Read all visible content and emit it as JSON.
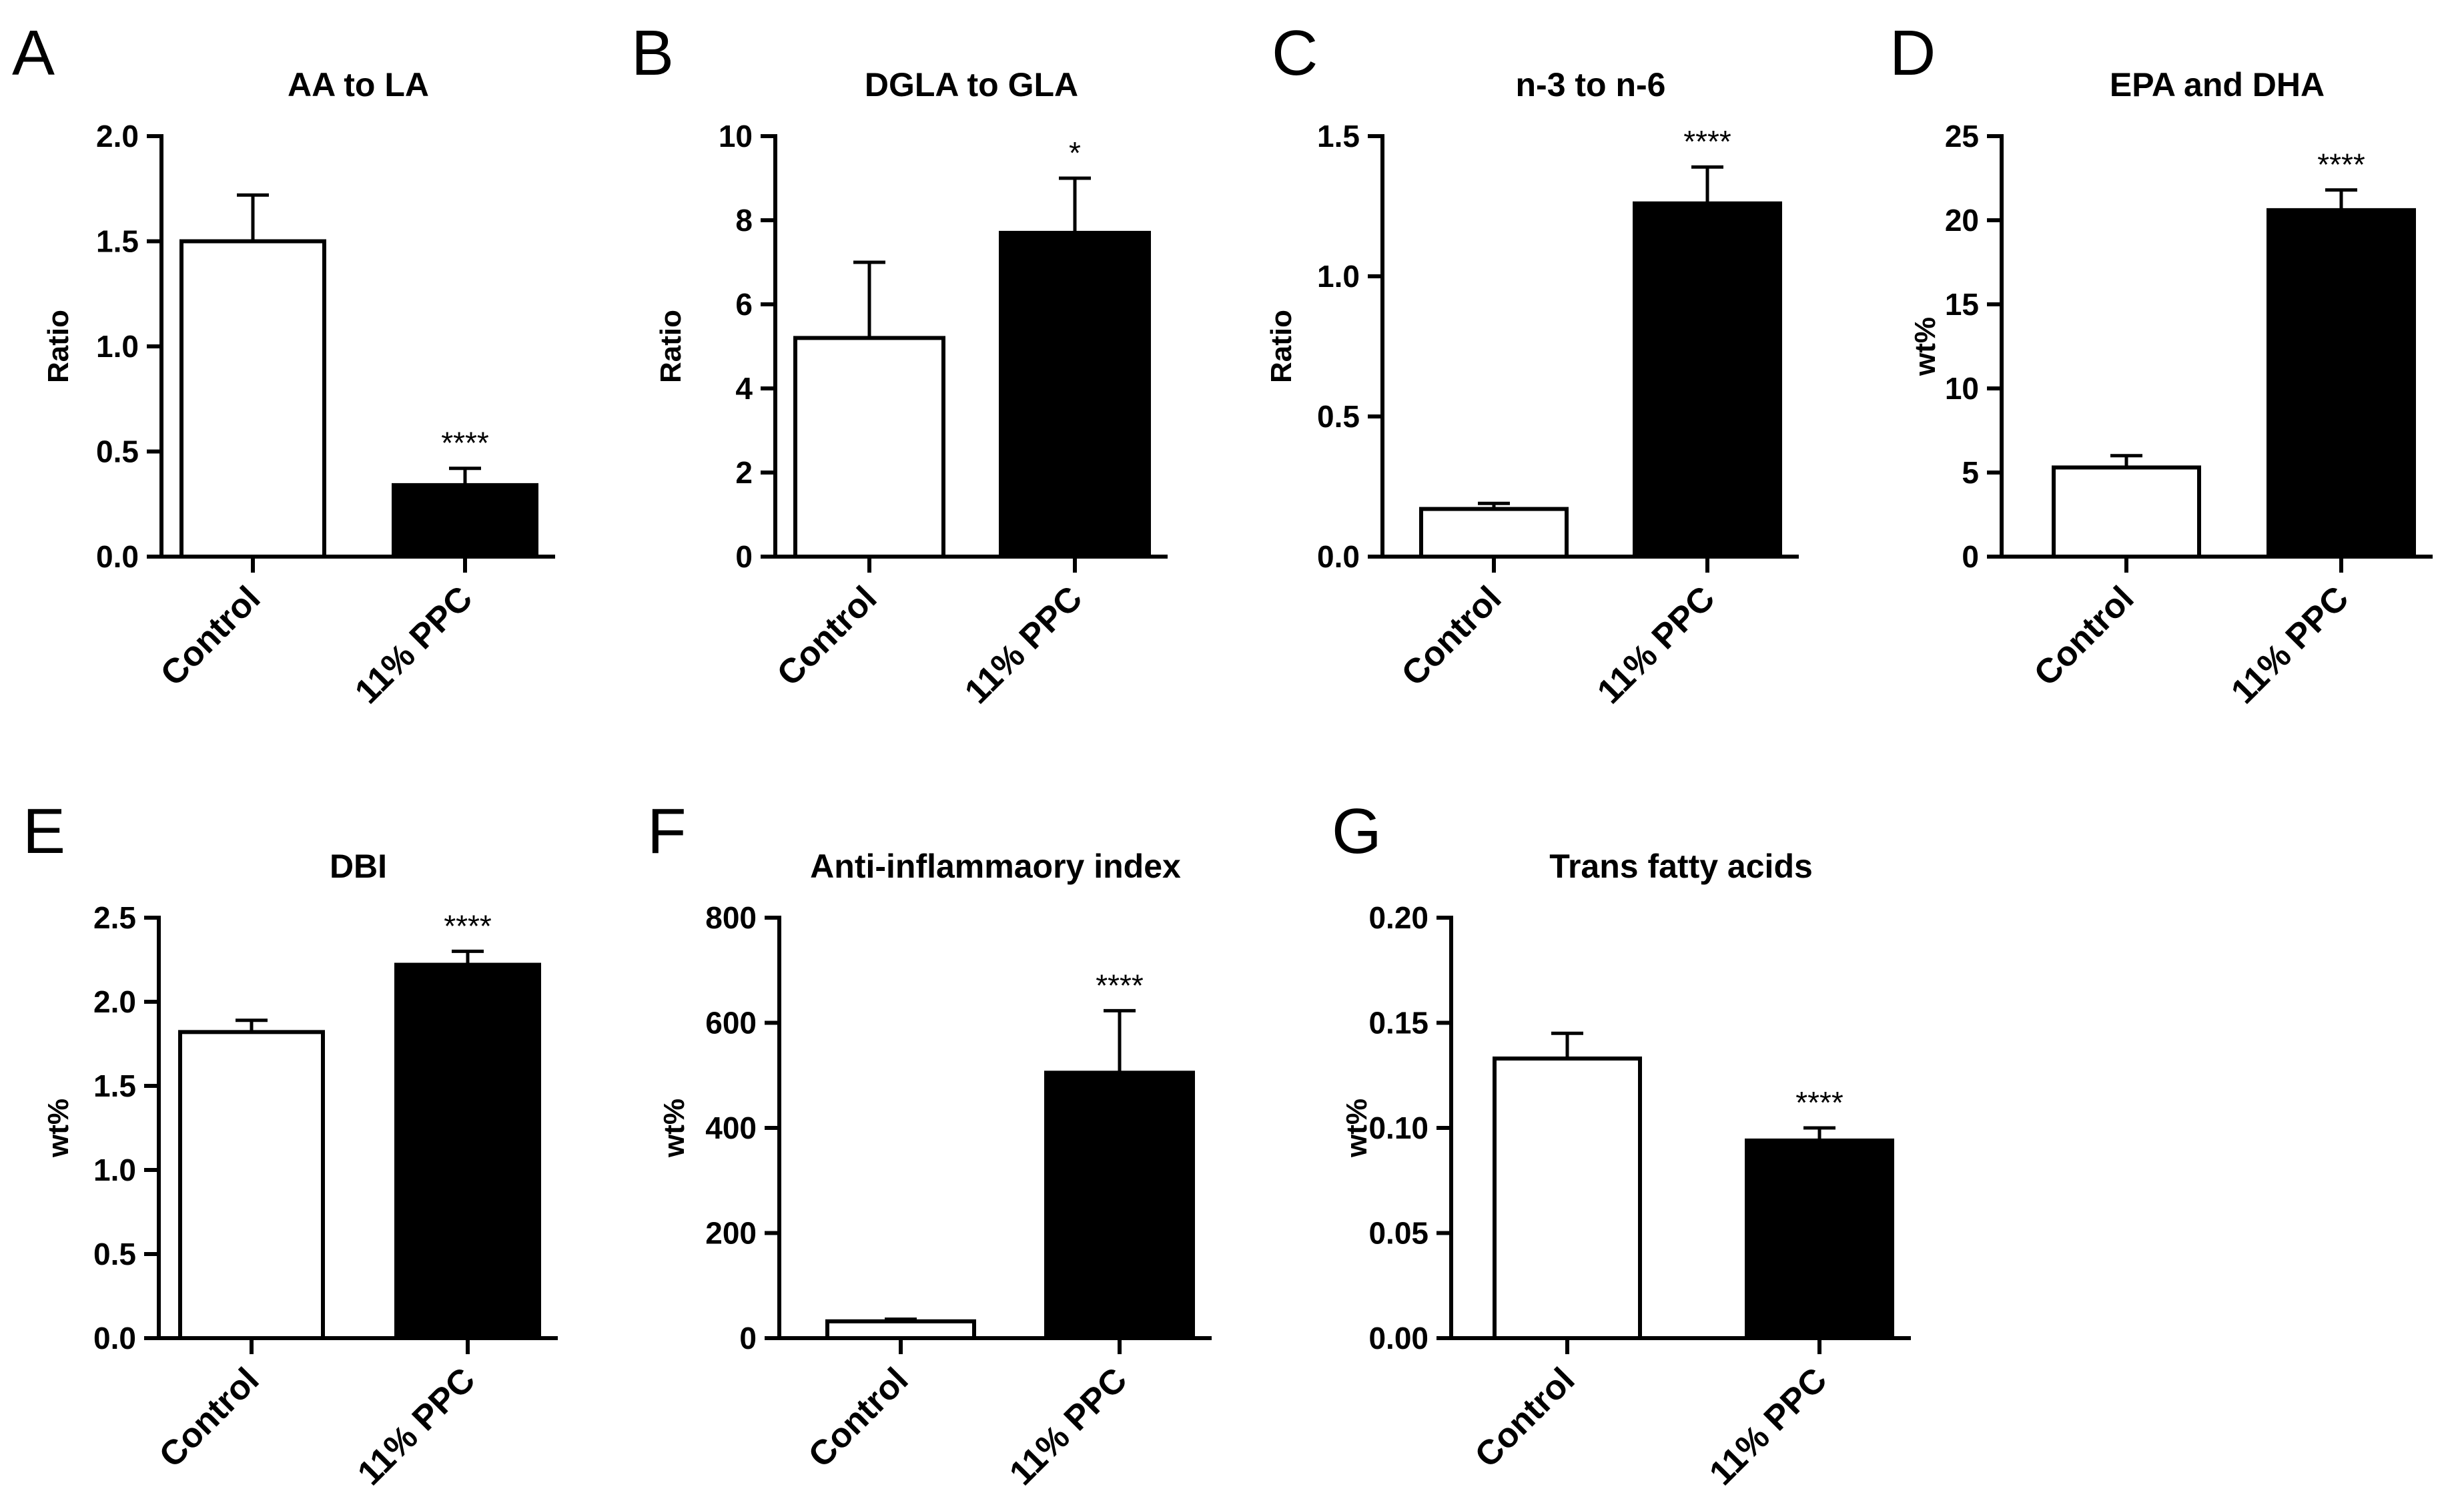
{
  "figure": {
    "categories": [
      "Control",
      "11% PPC"
    ],
    "colors": {
      "control_fill": "#ffffff",
      "ppc_fill": "#000000",
      "axis": "#000000"
    }
  },
  "chart_data": [
    {
      "type": "bar",
      "panel": "A",
      "title": "AA to LA",
      "ylabel": "Ratio",
      "categories": [
        "Control",
        "11% PPC"
      ],
      "values": [
        1.5,
        0.34
      ],
      "errors": [
        0.22,
        0.08
      ],
      "significance": [
        "",
        "****"
      ],
      "ylim": [
        0,
        2.0
      ],
      "yticks": [
        0,
        0.5,
        1.0,
        1.5,
        2.0
      ],
      "ytick_labels": [
        "0.0",
        "0.5",
        "1.0",
        "1.5",
        "2.0"
      ]
    },
    {
      "type": "bar",
      "panel": "B",
      "title": "DGLA to GLA",
      "ylabel": "Ratio",
      "categories": [
        "Control",
        "11% PPC"
      ],
      "values": [
        5.2,
        7.7
      ],
      "errors": [
        1.8,
        1.3
      ],
      "significance": [
        "",
        "*"
      ],
      "ylim": [
        0,
        10
      ],
      "yticks": [
        0,
        2,
        4,
        6,
        8,
        10
      ],
      "ytick_labels": [
        "0",
        "2",
        "4",
        "6",
        "8",
        "10"
      ]
    },
    {
      "type": "bar",
      "panel": "C",
      "title": "n-3 to n-6",
      "ylabel": "Ratio",
      "categories": [
        "Control",
        "11% PPC"
      ],
      "values": [
        0.17,
        1.26
      ],
      "errors": [
        0.02,
        0.13
      ],
      "significance": [
        "",
        "****"
      ],
      "ylim": [
        0,
        1.5
      ],
      "yticks": [
        0,
        0.5,
        1.0,
        1.5
      ],
      "ytick_labels": [
        "0.0",
        "0.5",
        "1.0",
        "1.5"
      ]
    },
    {
      "type": "bar",
      "panel": "D",
      "title": "EPA and DHA",
      "ylabel": "wt%",
      "categories": [
        "Control",
        "11% PPC"
      ],
      "values": [
        5.3,
        20.6
      ],
      "errors": [
        0.7,
        1.2
      ],
      "significance": [
        "",
        "****"
      ],
      "ylim": [
        0,
        25
      ],
      "yticks": [
        0,
        5,
        10,
        15,
        20,
        25
      ],
      "ytick_labels": [
        "0",
        "5",
        "10",
        "15",
        "20",
        "25"
      ]
    },
    {
      "type": "bar",
      "panel": "E",
      "title": "DBI",
      "ylabel": "wt%",
      "categories": [
        "Control",
        "11% PPC"
      ],
      "values": [
        1.82,
        2.22
      ],
      "errors": [
        0.07,
        0.08
      ],
      "significance": [
        "",
        "****"
      ],
      "ylim": [
        0,
        2.5
      ],
      "yticks": [
        0,
        0.5,
        1.0,
        1.5,
        2.0,
        2.5
      ],
      "ytick_labels": [
        "0.0",
        "0.5",
        "1.0",
        "1.5",
        "2.0",
        "2.5"
      ]
    },
    {
      "type": "bar",
      "panel": "F",
      "title": "Anti-inflammaory index",
      "ylabel": "wt%",
      "categories": [
        "Control",
        "11% PPC"
      ],
      "values": [
        32,
        505
      ],
      "errors": [
        4,
        118
      ],
      "significance": [
        "",
        "****"
      ],
      "ylim": [
        0,
        800
      ],
      "yticks": [
        0,
        200,
        400,
        600,
        800
      ],
      "ytick_labels": [
        "0",
        "200",
        "400",
        "600",
        "800"
      ]
    },
    {
      "type": "bar",
      "panel": "G",
      "title": "Trans fatty acids",
      "ylabel": "wt%",
      "categories": [
        "Control",
        "11% PPC"
      ],
      "values": [
        0.133,
        0.094
      ],
      "errors": [
        0.012,
        0.006
      ],
      "significance": [
        "",
        "****"
      ],
      "ylim": [
        0,
        0.2
      ],
      "yticks": [
        0,
        0.05,
        0.1,
        0.15,
        0.2
      ],
      "ytick_labels": [
        "0.00",
        "0.05",
        "0.10",
        "0.15",
        "0.20"
      ]
    }
  ]
}
